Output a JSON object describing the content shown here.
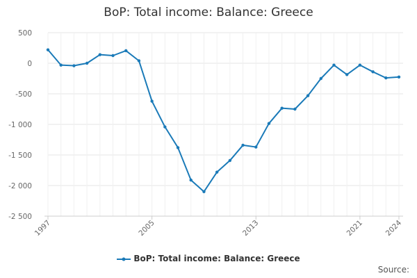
{
  "chart_data": {
    "type": "line",
    "title": "BoP: Total income: Balance: Greece",
    "xlabel": "",
    "ylabel": "",
    "x": [
      1997,
      1998,
      1999,
      2000,
      2001,
      2002,
      2003,
      2004,
      2005,
      2006,
      2007,
      2008,
      2009,
      2010,
      2011,
      2012,
      2013,
      2014,
      2015,
      2016,
      2017,
      2018,
      2019,
      2020,
      2021,
      2022,
      2023,
      2024
    ],
    "series": [
      {
        "name": "BoP: Total income: Balance: Greece",
        "values": [
          220,
          -30,
          -40,
          0,
          140,
          125,
          205,
          40,
          -620,
          -1040,
          -1380,
          -1910,
          -2100,
          -1780,
          -1590,
          -1340,
          -1370,
          -985,
          -735,
          -750,
          -530,
          -250,
          -30,
          -185,
          -30,
          -140,
          -240,
          -225
        ]
      }
    ],
    "ylim": [
      -2500,
      500
    ],
    "yticks": [
      500,
      0,
      -500,
      -1000,
      -1500,
      -2000,
      -2500
    ],
    "ytick_labels": [
      "500",
      "0",
      "-500",
      "-1 000",
      "-1 500",
      "-2 000",
      "-2 500"
    ],
    "xtick_labels": [
      "1997",
      "2005",
      "2013",
      "2021",
      "2024"
    ],
    "grid": true,
    "legend_position": "bottom",
    "line_color": "#1a7ab8",
    "source_label": "Source:"
  }
}
